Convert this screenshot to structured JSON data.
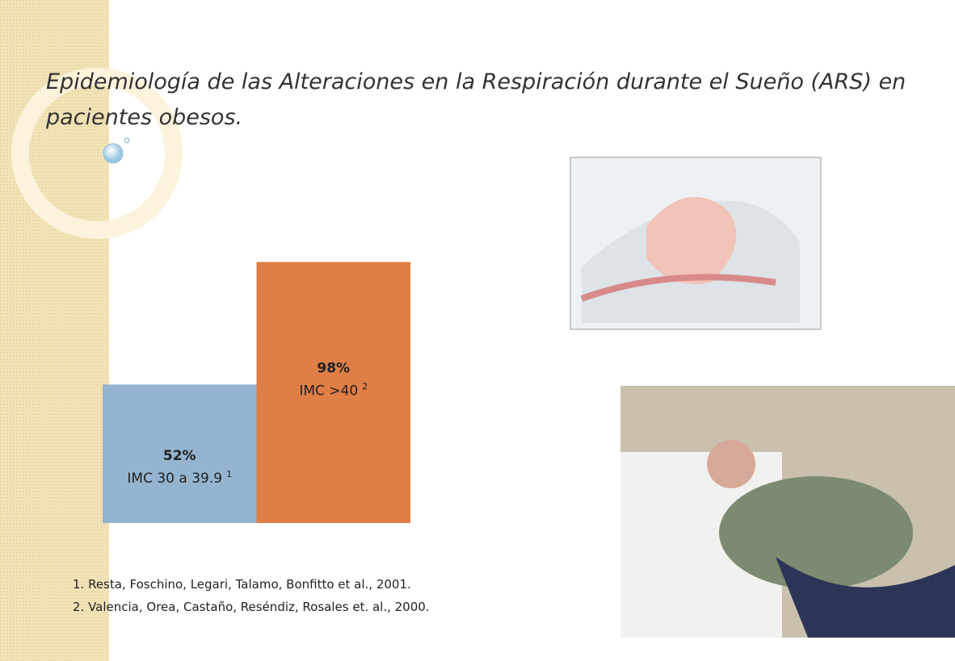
{
  "title": "Epidemiología de las Alteraciones en la Respiración durante el Sueño (ARS) en pacientes obesos.",
  "chart_data": {
    "type": "bar",
    "categories": [
      "IMC  30 a 39.9",
      "IMC  >40"
    ],
    "notes": [
      "1",
      "2"
    ],
    "values": [
      52,
      98
    ],
    "value_labels": [
      "52%",
      "98%"
    ],
    "colors": [
      "#94b4cf",
      "#df7e45"
    ]
  },
  "references": [
    "1. Resta, Foschino, Legari, Talamo, Bonfitto  et al., 2001.",
    "2. Valencia, Orea, Castaño, Reséndiz, Rosales et. al., 2000."
  ]
}
